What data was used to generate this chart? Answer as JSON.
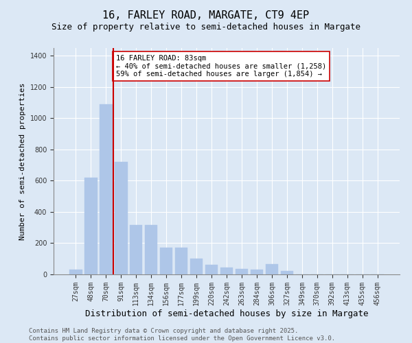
{
  "title": "16, FARLEY ROAD, MARGATE, CT9 4EP",
  "subtitle": "Size of property relative to semi-detached houses in Margate",
  "xlabel": "Distribution of semi-detached houses by size in Margate",
  "ylabel": "Number of semi-detached properties",
  "bar_labels": [
    "27sqm",
    "48sqm",
    "70sqm",
    "91sqm",
    "113sqm",
    "134sqm",
    "156sqm",
    "177sqm",
    "199sqm",
    "220sqm",
    "242sqm",
    "263sqm",
    "284sqm",
    "306sqm",
    "327sqm",
    "349sqm",
    "370sqm",
    "392sqm",
    "413sqm",
    "435sqm",
    "456sqm"
  ],
  "bar_values": [
    30,
    620,
    1090,
    720,
    315,
    315,
    170,
    170,
    100,
    60,
    45,
    35,
    30,
    65,
    20,
    0,
    0,
    0,
    0,
    0,
    0
  ],
  "bar_color": "#aec6e8",
  "bar_edge_color": "#aec6e8",
  "vline_position": 2.5,
  "vline_color": "#cc0000",
  "annotation_text": "16 FARLEY ROAD: 83sqm\n← 40% of semi-detached houses are smaller (1,258)\n59% of semi-detached houses are larger (1,854) →",
  "annotation_box_color": "#ffffff",
  "annotation_box_edge_color": "#cc0000",
  "ylim": [
    0,
    1450
  ],
  "yticks": [
    0,
    200,
    400,
    600,
    800,
    1000,
    1200,
    1400
  ],
  "bg_color": "#dce8f5",
  "footer_text": "Contains HM Land Registry data © Crown copyright and database right 2025.\nContains public sector information licensed under the Open Government Licence v3.0.",
  "title_fontsize": 11,
  "subtitle_fontsize": 9,
  "xlabel_fontsize": 9,
  "ylabel_fontsize": 8,
  "tick_fontsize": 7,
  "annotation_fontsize": 7.5,
  "footer_fontsize": 6.5
}
